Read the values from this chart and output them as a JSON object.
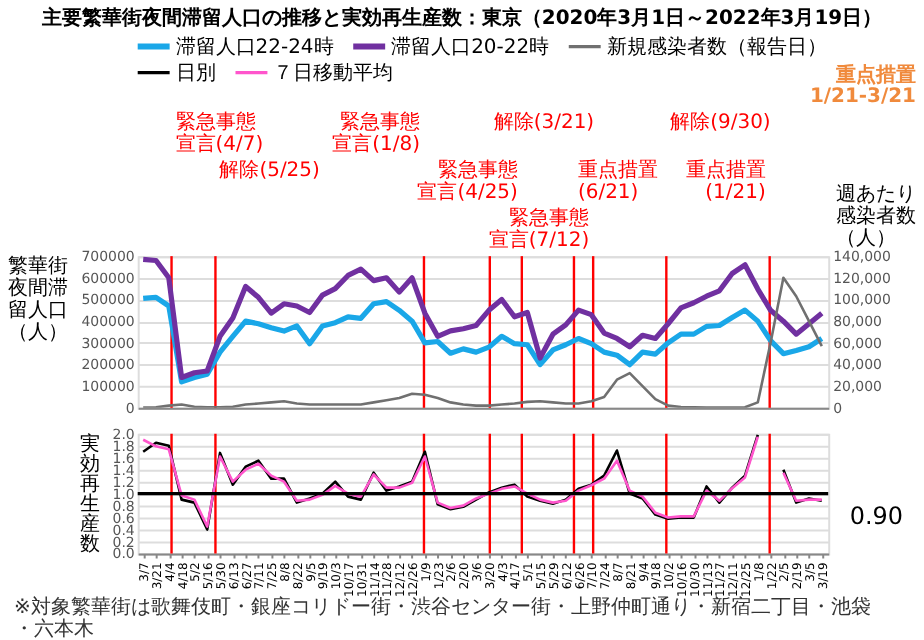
{
  "chart_data": [
    {
      "type": "line",
      "title": "主要繁華街夜間滞留人口の推移と実効再生産数：東京（2020年3月1日～2022年3月19日）",
      "ylabel": "繁華街夜間滞留人口（人）",
      "y2label": "週あたり感染者数（人）",
      "annotations": [
        "重点措置\n1/21-3/21"
      ],
      "x": [
        "2020-03-07",
        "2020-03-21",
        "2020-04-04",
        "2020-04-18",
        "2020-05-02",
        "2020-05-16",
        "2020-05-30",
        "2020-06-13",
        "2020-06-27",
        "2020-07-11",
        "2020-07-25",
        "2020-08-08",
        "2020-08-22",
        "2020-09-05",
        "2020-09-19",
        "2020-10-03",
        "2020-10-17",
        "2020-10-31",
        "2020-11-14",
        "2020-11-28",
        "2020-12-12",
        "2020-12-26",
        "2021-01-09",
        "2021-01-23",
        "2021-02-06",
        "2021-02-20",
        "2021-03-06",
        "2021-03-20",
        "2021-04-03",
        "2021-04-17",
        "2021-05-01",
        "2021-05-15",
        "2021-05-29",
        "2021-06-12",
        "2021-06-26",
        "2021-07-10",
        "2021-07-24",
        "2021-08-07",
        "2021-08-21",
        "2021-09-04",
        "2021-09-18",
        "2021-10-02",
        "2021-10-16",
        "2021-10-30",
        "2021-11-13",
        "2021-11-27",
        "2021-12-11",
        "2021-12-25",
        "2022-01-08",
        "2022-01-22",
        "2022-02-05",
        "2022-02-19",
        "2022-03-05",
        "2022-03-19"
      ],
      "series": [
        {
          "name": "滞留人口22-24時",
          "color": "#1aa7e8",
          "values": [
            505000,
            510000,
            470000,
            120000,
            140000,
            155000,
            257000,
            330000,
            400000,
            388000,
            370000,
            354000,
            378000,
            296000,
            378000,
            393000,
            420000,
            413000,
            480000,
            490000,
            450000,
            400000,
            300000,
            306000,
            252000,
            272000,
            257000,
            280000,
            330000,
            296000,
            291000,
            200000,
            267000,
            291000,
            320000,
            296000,
            257000,
            243000,
            199000,
            257000,
            248000,
            300000,
            340000,
            340000,
            376000,
            380000,
            417000,
            451000,
            400000,
            310000,
            250000,
            265000,
            282000,
            320000
          ]
        },
        {
          "name": "滞留人口20-22時",
          "color": "#7030a0",
          "values": [
            685000,
            680000,
            600000,
            140000,
            162000,
            170000,
            330000,
            415000,
            560000,
            510000,
            437000,
            480000,
            470000,
            440000,
            520000,
            550000,
            611000,
            640000,
            587000,
            600000,
            534000,
            600000,
            437000,
            330000,
            355000,
            365000,
            380000,
            450000,
            500000,
            420000,
            440000,
            230000,
            340000,
            383000,
            451000,
            430000,
            345000,
            320000,
            282000,
            335000,
            320000,
            388000,
            461000,
            485000,
            515000,
            540000,
            620000,
            660000,
            548000,
            450000,
            400000,
            340000,
            388000,
            437000
          ]
        },
        {
          "name": "新規感染者数（報告日）",
          "color": "#707070",
          "axis": "y2",
          "values": [
            300,
            500,
            2000,
            3000,
            1000,
            500,
            500,
            1000,
            3000,
            4000,
            5000,
            6000,
            4000,
            3000,
            3000,
            3000,
            3000,
            3000,
            5000,
            7000,
            9000,
            13000,
            12000,
            9000,
            5000,
            3000,
            2000,
            2000,
            3000,
            4000,
            5500,
            6000,
            5000,
            4000,
            4000,
            6000,
            10000,
            26000,
            32000,
            20000,
            8000,
            2000,
            800,
            500,
            300,
            300,
            300,
            500,
            5000,
            60000,
            120000,
            103000,
            80000,
            57000
          ]
        }
      ],
      "xlim": [
        "2020-03-01",
        "2022-03-26"
      ],
      "tick_labels": "y",
      "ylim": [
        0,
        700000
      ],
      "yticks": [
        0,
        100000,
        200000,
        300000,
        400000,
        500000,
        600000,
        700000
      ],
      "y2lim": [
        0,
        140000
      ],
      "y2ticks": [
        0,
        {
          "value": 20000,
          "label": "20,000"
        },
        {
          "value": 40000,
          "label": "40,000"
        },
        {
          "value": 60000,
          "label": "60,000"
        },
        {
          "value": 80000,
          "label": "80,000"
        },
        {
          "value": 100000,
          "label": "100,000"
        },
        {
          "value": 120000,
          "label": "120,000"
        },
        {
          "value": 140000,
          "label": "140,000"
        }
      ],
      "ref_lines": [
        {
          "axis": "x",
          "value": "2020-04-07",
          "label": "緊急事態宣言(4/7)",
          "color": "#ff0000"
        },
        {
          "axis": "x",
          "value": "2020-05-25",
          "label": "解除(5/25)",
          "color": "#ff0000"
        },
        {
          "axis": "x",
          "value": "2021-01-08",
          "label": "緊急事態宣言(1/8)",
          "color": "#ff0000"
        },
        {
          "axis": "x",
          "value": "2021-03-21",
          "label": "解除(3/21)",
          "color": "#ff0000"
        },
        {
          "axis": "x",
          "value": "2021-04-25",
          "label": "緊急事態宣言(4/25)",
          "color": "#ff0000"
        },
        {
          "axis": "x",
          "value": "2021-06-21",
          "label": "重点措置(6/21)",
          "color": "#ff0000"
        },
        {
          "axis": "x",
          "value": "2021-07-12",
          "label": "緊急事態宣言(7/12)",
          "color": "#ff0000"
        },
        {
          "axis": "x",
          "value": "2021-09-30",
          "label": "解除(9/30)",
          "color": "#ff0000"
        },
        {
          "axis": "x",
          "value": "2022-01-21",
          "label": "重点措置(1/21)",
          "color": "#ff0000"
        }
      ],
      "grid": "y",
      "legend": "top",
      "line_style": "solid",
      "marker": "none"
    },
    {
      "type": "line",
      "ylabel": "実効再生産数",
      "annotations": [
        "※対象繁華街は歌舞伎町・銀座コリドー街・渋谷センター街・上野仲町通り・新宿二丁目・池袋・六本木",
        {
          "text": "0.90",
          "x": "2022-03-19",
          "y": 0.9
        }
      ],
      "x": [
        "2020-03-07",
        "2020-03-21",
        "2020-04-04",
        "2020-04-18",
        "2020-05-02",
        "2020-05-16",
        "2020-05-30",
        "2020-06-13",
        "2020-06-27",
        "2020-07-11",
        "2020-07-25",
        "2020-08-08",
        "2020-08-22",
        "2020-09-05",
        "2020-09-19",
        "2020-10-03",
        "2020-10-17",
        "2020-10-31",
        "2020-11-14",
        "2020-11-28",
        "2020-12-12",
        "2020-12-26",
        "2021-01-09",
        "2021-01-23",
        "2021-02-06",
        "2021-02-20",
        "2021-03-06",
        "2021-03-20",
        "2021-04-03",
        "2021-04-17",
        "2021-05-01",
        "2021-05-15",
        "2021-05-29",
        "2021-06-12",
        "2021-06-26",
        "2021-07-10",
        "2021-07-24",
        "2021-08-07",
        "2021-08-21",
        "2021-09-04",
        "2021-09-18",
        "2021-10-02",
        "2021-10-16",
        "2021-10-30",
        "2021-11-13",
        "2021-11-27",
        "2021-12-11",
        "2021-12-25",
        "2022-01-08",
        "2022-01-22",
        "2022-02-05",
        "2022-02-19",
        "2022-03-05",
        "2022-03-19"
      ],
      "series": [
        {
          "name": "日別",
          "color": "#000000",
          "values": [
            1.7,
            1.85,
            1.8,
            0.9,
            0.85,
            0.4,
            1.68,
            1.15,
            1.45,
            1.55,
            1.25,
            1.25,
            0.85,
            0.92,
            1.0,
            1.2,
            0.95,
            0.9,
            1.35,
            1.05,
            1.12,
            1.2,
            1.7,
            0.82,
            0.74,
            0.78,
            0.9,
            1.02,
            1.1,
            1.15,
            0.95,
            0.88,
            0.83,
            0.9,
            1.08,
            1.15,
            1.3,
            1.72,
            1.0,
            0.92,
            0.65,
            0.58,
            0.6,
            0.6,
            1.12,
            0.85,
            1.1,
            1.3,
            1.98,
            null,
            1.4,
            0.85,
            0.92,
            0.88
          ]
        },
        {
          "name": "７日移動平均",
          "color": "#ff55cc",
          "values": [
            1.9,
            1.79,
            1.74,
            0.97,
            0.9,
            0.45,
            1.62,
            1.2,
            1.4,
            1.5,
            1.3,
            1.2,
            0.88,
            0.9,
            0.98,
            1.13,
            1.0,
            0.95,
            1.32,
            1.1,
            1.1,
            1.18,
            1.62,
            0.85,
            0.76,
            0.8,
            0.92,
            1.0,
            1.08,
            1.12,
            1.0,
            0.9,
            0.85,
            0.88,
            1.05,
            1.14,
            1.25,
            1.55,
            1.05,
            0.95,
            0.68,
            0.6,
            0.62,
            0.62,
            1.05,
            0.88,
            1.09,
            1.27,
            1.95,
            null,
            1.35,
            0.88,
            0.9,
            0.9
          ]
        }
      ],
      "xlim": [
        "2020-03-01",
        "2022-03-26"
      ],
      "xticks": [
        {
          "value": "2020-03-07",
          "label": "3/7"
        },
        {
          "value": "2020-03-21",
          "label": "3/21"
        },
        {
          "value": "2020-04-04",
          "label": "4/4"
        },
        {
          "value": "2020-04-18",
          "label": "4/18"
        },
        {
          "value": "2020-05-02",
          "label": "5/2"
        },
        {
          "value": "2020-05-16",
          "label": "5/16"
        },
        {
          "value": "2020-05-30",
          "label": "5/30"
        },
        {
          "value": "2020-06-13",
          "label": "6/13"
        },
        {
          "value": "2020-06-27",
          "label": "6/27"
        },
        {
          "value": "2020-07-11",
          "label": "7/11"
        },
        {
          "value": "2020-07-25",
          "label": "7/25"
        },
        {
          "value": "2020-08-08",
          "label": "8/8"
        },
        {
          "value": "2020-08-22",
          "label": "8/22"
        },
        {
          "value": "2020-09-05",
          "label": "9/5"
        },
        {
          "value": "2020-09-19",
          "label": "9/19"
        },
        {
          "value": "2020-10-03",
          "label": "10/3"
        },
        {
          "value": "2020-10-17",
          "label": "10/17"
        },
        {
          "value": "2020-10-31",
          "label": "10/31"
        },
        {
          "value": "2020-11-14",
          "label": "11/14"
        },
        {
          "value": "2020-11-28",
          "label": "11/28"
        },
        {
          "value": "2020-12-12",
          "label": "12/12"
        },
        {
          "value": "2020-12-26",
          "label": "12/26"
        },
        {
          "value": "2021-01-09",
          "label": "1/9"
        },
        {
          "value": "2021-01-23",
          "label": "1/23"
        },
        {
          "value": "2021-02-06",
          "label": "2/6"
        },
        {
          "value": "2021-02-20",
          "label": "2/20"
        },
        {
          "value": "2021-03-06",
          "label": "3/6"
        },
        {
          "value": "2021-03-20",
          "label": "3/20"
        },
        {
          "value": "2021-04-03",
          "label": "4/3"
        },
        {
          "value": "2021-04-17",
          "label": "4/17"
        },
        {
          "value": "2021-05-01",
          "label": "5/1"
        },
        {
          "value": "2021-05-15",
          "label": "5/15"
        },
        {
          "value": "2021-05-29",
          "label": "5/29"
        },
        {
          "value": "2021-06-12",
          "label": "6/12"
        },
        {
          "value": "2021-06-26",
          "label": "6/26"
        },
        {
          "value": "2021-07-10",
          "label": "7/10"
        },
        {
          "value": "2021-07-24",
          "label": "7/24"
        },
        {
          "value": "2021-08-07",
          "label": "8/7"
        },
        {
          "value": "2021-08-21",
          "label": "8/21"
        },
        {
          "value": "2021-09-04",
          "label": "9/4"
        },
        {
          "value": "2021-09-18",
          "label": "9/18"
        },
        {
          "value": "2021-10-02",
          "label": "10/2"
        },
        {
          "value": "2021-10-16",
          "label": "10/16"
        },
        {
          "value": "2021-10-30",
          "label": "10/30"
        },
        {
          "value": "2021-11-13",
          "label": "11/13"
        },
        {
          "value": "2021-11-27",
          "label": "11/27"
        },
        {
          "value": "2021-12-11",
          "label": "12/11"
        },
        {
          "value": "2021-12-25",
          "label": "12/25"
        },
        {
          "value": "2022-01-08",
          "label": "1/8"
        },
        {
          "value": "2022-01-22",
          "label": "1/22"
        },
        {
          "value": "2022-02-05",
          "label": "2/5"
        },
        {
          "value": "2022-02-19",
          "label": "2/19"
        },
        {
          "value": "2022-03-05",
          "label": "3/5"
        },
        {
          "value": "2022-03-19",
          "label": "3/19"
        }
      ],
      "ylim": [
        0,
        2
      ],
      "yticks": [
        {
          "value": 0,
          "label": "0.0"
        },
        0.2,
        0.4,
        0.6,
        0.8,
        {
          "value": 1,
          "label": "1.0"
        },
        1.2,
        1.4,
        1.6,
        1.8,
        {
          "value": 2,
          "label": "2.0"
        }
      ],
      "ref_lines": [
        {
          "axis": "x",
          "value": "2020-04-07",
          "color": "#ff0000"
        },
        {
          "axis": "x",
          "value": "2020-05-25",
          "color": "#ff0000"
        },
        {
          "axis": "x",
          "value": "2021-01-08",
          "color": "#ff0000"
        },
        {
          "axis": "x",
          "value": "2021-03-21",
          "color": "#ff0000"
        },
        {
          "axis": "x",
          "value": "2021-04-25",
          "color": "#ff0000"
        },
        {
          "axis": "x",
          "value": "2021-06-21",
          "color": "#ff0000"
        },
        {
          "axis": "x",
          "value": "2021-07-12",
          "color": "#ff0000"
        },
        {
          "axis": "x",
          "value": "2021-09-30",
          "color": "#ff0000"
        },
        {
          "axis": "x",
          "value": "2022-01-21",
          "color": "#ff0000"
        },
        {
          "axis": "y",
          "value": 1,
          "color": "#000000"
        }
      ],
      "grid": "y",
      "legend": "top",
      "line_style": "solid",
      "marker": "none"
    }
  ]
}
